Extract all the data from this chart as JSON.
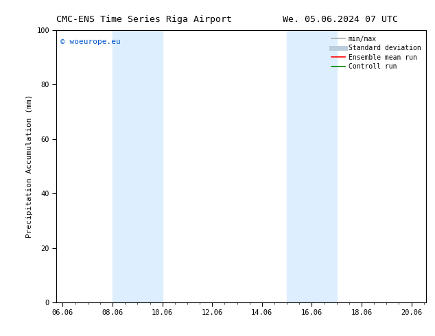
{
  "title_left": "CMC-ENS Time Series Riga Airport",
  "title_right": "We. 05.06.2024 07 UTC",
  "ylabel": "Precipitation Accumulation (mm)",
  "watermark": "© woeurope.eu",
  "watermark_color": "#0055cc",
  "ylim": [
    0,
    100
  ],
  "xlim_start": 5.75,
  "xlim_end": 20.6,
  "xtick_labels": [
    "06.06",
    "08.06",
    "10.06",
    "12.06",
    "14.06",
    "16.06",
    "18.06",
    "20.06"
  ],
  "xtick_positions": [
    6.0,
    8.0,
    10.0,
    12.0,
    14.0,
    16.0,
    18.0,
    20.0
  ],
  "ytick_labels": [
    "0",
    "20",
    "40",
    "60",
    "80",
    "100"
  ],
  "ytick_positions": [
    0,
    20,
    40,
    60,
    80,
    100
  ],
  "shaded_bands": [
    {
      "x_start": 8.0,
      "x_end": 10.0
    },
    {
      "x_start": 15.0,
      "x_end": 17.0
    }
  ],
  "shade_color": "#ddeeff",
  "legend_entries": [
    {
      "label": "min/max",
      "color": "#aaaaaa",
      "lw": 1.2,
      "style": "solid"
    },
    {
      "label": "Standard deviation",
      "color": "#bbccdd",
      "lw": 5,
      "style": "solid"
    },
    {
      "label": "Ensemble mean run",
      "color": "#ff0000",
      "lw": 1.2,
      "style": "solid"
    },
    {
      "label": "Controll run",
      "color": "#008000",
      "lw": 1.2,
      "style": "solid"
    }
  ],
  "background_color": "#ffffff",
  "font_color": "#000000",
  "title_fontsize": 9.5,
  "label_fontsize": 8,
  "tick_fontsize": 7.5,
  "legend_fontsize": 7,
  "watermark_fontsize": 8
}
